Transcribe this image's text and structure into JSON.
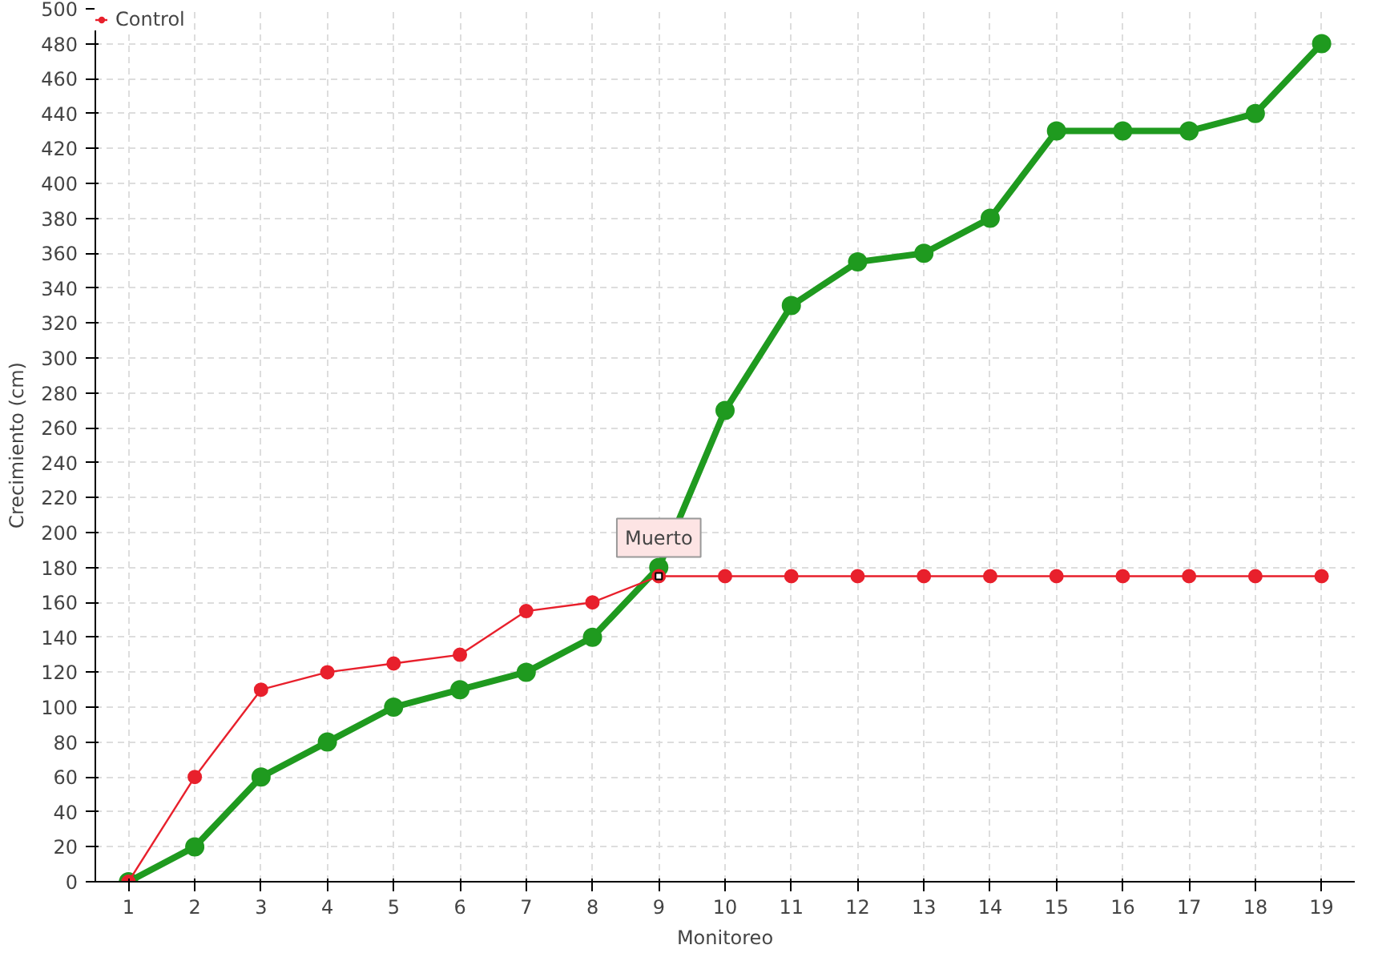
{
  "chart_data": {
    "type": "line",
    "xlabel": "Monitoreo",
    "ylabel": "Crecimiento (cm)",
    "x": [
      1,
      2,
      3,
      4,
      5,
      6,
      7,
      8,
      9,
      10,
      11,
      12,
      13,
      14,
      15,
      16,
      17,
      18,
      19
    ],
    "series": [
      {
        "color": "#1f9a1f",
        "values": [
          0,
          20,
          60,
          80,
          100,
          110,
          120,
          140,
          180,
          270,
          330,
          355,
          360,
          380,
          430,
          430,
          430,
          440,
          480
        ]
      },
      {
        "name": "Control",
        "color": "#e8202c",
        "values": [
          0,
          60,
          110,
          120,
          125,
          130,
          155,
          160,
          175,
          175,
          175,
          175,
          175,
          175,
          175,
          175,
          175,
          175,
          175
        ]
      }
    ],
    "annotations": [
      {
        "text": "Muerto",
        "x": 9,
        "y": 175
      }
    ],
    "xlim": [
      0.5,
      19.5
    ],
    "xticks": [
      1,
      2,
      3,
      4,
      5,
      6,
      7,
      8,
      9,
      10,
      11,
      12,
      13,
      14,
      15,
      16,
      17,
      18,
      19
    ],
    "ylim": [
      0,
      500
    ],
    "yticks": [
      0,
      20,
      40,
      60,
      80,
      100,
      120,
      140,
      160,
      180,
      200,
      220,
      240,
      260,
      280,
      300,
      320,
      340,
      360,
      380,
      400,
      420,
      440,
      460,
      480,
      500
    ],
    "grid": true,
    "legend": "top left",
    "marker": "circle",
    "line_style": "solid"
  }
}
